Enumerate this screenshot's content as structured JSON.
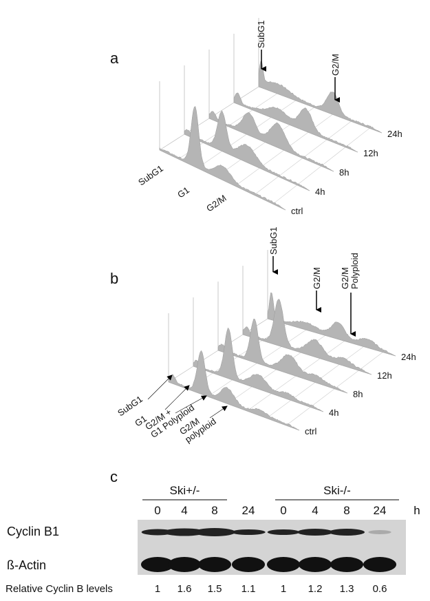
{
  "panel_a": {
    "label": "a",
    "peak_labels": [
      "SubG1",
      "G2/M"
    ],
    "axis_labels": [
      "SubG1",
      "G1",
      "G2/M"
    ],
    "timepoints": [
      "ctrl",
      "4h",
      "8h",
      "12h",
      "24h"
    ]
  },
  "panel_b": {
    "label": "b",
    "peak_labels": [
      "SubG1",
      "G2/M",
      [
        "G2/M",
        "Polyploid"
      ]
    ],
    "axis_labels": [
      "SubG1",
      "G1",
      [
        "G2/M +",
        "G1 Polyploid"
      ],
      [
        "G2/M",
        "polyploid"
      ]
    ],
    "timepoints": [
      "ctrl",
      "4h",
      "8h",
      "12h",
      "24h"
    ]
  },
  "panel_c": {
    "label": "c",
    "groups": [
      "Ski+/-",
      "Ski-/-"
    ],
    "times": [
      "0",
      "4",
      "8",
      "24",
      "0",
      "4",
      "8",
      "24"
    ],
    "unit": "h",
    "rows": [
      "Cyclin B1",
      "ß-Actin"
    ],
    "relative_label": "Relative Cyclin B levels",
    "relative_values": [
      1,
      1.6,
      1.5,
      1.1,
      1,
      1.2,
      1.3,
      0.6
    ]
  }
}
